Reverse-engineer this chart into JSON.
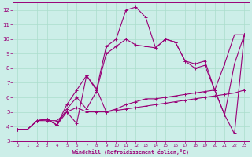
{
  "xlabel": "Windchill (Refroidissement éolien,°C)",
  "bg_color": "#cceee8",
  "grid_color": "#aaddcc",
  "line_color": "#990077",
  "xlim": [
    -0.5,
    23.5
  ],
  "ylim": [
    3,
    12.5
  ],
  "xticks": [
    0,
    1,
    2,
    3,
    4,
    5,
    6,
    7,
    8,
    9,
    10,
    11,
    12,
    13,
    14,
    15,
    16,
    17,
    18,
    19,
    20,
    21,
    22,
    23
  ],
  "yticks": [
    3,
    4,
    5,
    6,
    7,
    8,
    9,
    10,
    11,
    12
  ],
  "line1_x": [
    0,
    1,
    2,
    3,
    4,
    5,
    6,
    7,
    8,
    9,
    10,
    11,
    12,
    13,
    14,
    15,
    16,
    17,
    18,
    19,
    20,
    21,
    22,
    23
  ],
  "line1_y": [
    3.8,
    3.8,
    4.4,
    4.4,
    4.4,
    5.0,
    5.3,
    5.0,
    5.0,
    5.0,
    5.1,
    5.2,
    5.3,
    5.4,
    5.5,
    5.6,
    5.7,
    5.8,
    5.9,
    6.0,
    6.1,
    6.2,
    6.3,
    6.5
  ],
  "line2_x": [
    0,
    1,
    2,
    3,
    4,
    5,
    6,
    7,
    8,
    9,
    10,
    11,
    12,
    13,
    14,
    15,
    16,
    17,
    18,
    19,
    20,
    21,
    22,
    23
  ],
  "line2_y": [
    3.8,
    3.8,
    4.4,
    4.5,
    4.1,
    5.5,
    6.5,
    7.5,
    6.5,
    9.5,
    10.0,
    12.0,
    12.2,
    11.5,
    9.4,
    10.0,
    9.8,
    8.5,
    8.3,
    8.5,
    6.5,
    4.8,
    3.5,
    10.3
  ],
  "line3_x": [
    0,
    1,
    2,
    3,
    4,
    5,
    6,
    7,
    8,
    9,
    10,
    11,
    12,
    13,
    14,
    15,
    16,
    17,
    18,
    19,
    20,
    21,
    22,
    23
  ],
  "line3_y": [
    3.8,
    3.8,
    4.4,
    4.5,
    4.1,
    5.2,
    6.0,
    5.2,
    6.4,
    9.0,
    9.5,
    10.0,
    9.6,
    9.5,
    9.4,
    10.0,
    9.8,
    8.5,
    8.0,
    8.2,
    6.5,
    8.3,
    10.3,
    10.3
  ],
  "line4_x": [
    2,
    3,
    4,
    5,
    6,
    7,
    8,
    9,
    10,
    11,
    12,
    13,
    14,
    15,
    16,
    17,
    18,
    19,
    20,
    21,
    22,
    23
  ],
  "line4_y": [
    4.4,
    4.5,
    4.1,
    5.0,
    4.2,
    7.5,
    6.6,
    5.0,
    5.2,
    5.5,
    5.7,
    5.9,
    5.9,
    6.0,
    6.1,
    6.2,
    6.3,
    6.4,
    6.5,
    4.8,
    8.3,
    10.3
  ]
}
